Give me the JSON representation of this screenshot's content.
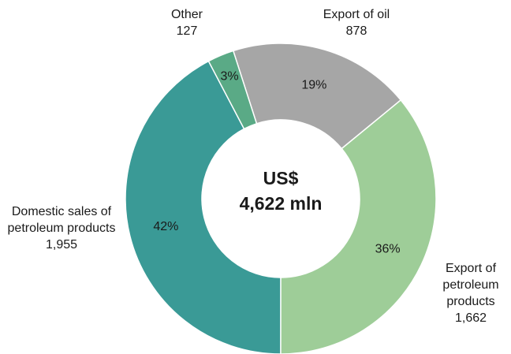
{
  "chart_data": {
    "type": "donut",
    "categories": [
      "Export of oil",
      "Export of petroleum products",
      "Domestic sales of petroleum products",
      "Other"
    ],
    "values": [
      878,
      1662,
      1955,
      127
    ],
    "value_labels": [
      "878",
      "1,662",
      "1,955",
      "127"
    ],
    "percentages": [
      19,
      36,
      42,
      3
    ],
    "percentage_labels": [
      "19%",
      "36%",
      "42%",
      "3%"
    ],
    "colors": [
      "#a6a6a6",
      "#9ecd98",
      "#3a9a96",
      "#5aaa86"
    ],
    "center_label": [
      "US$",
      "4,622 mln"
    ]
  }
}
